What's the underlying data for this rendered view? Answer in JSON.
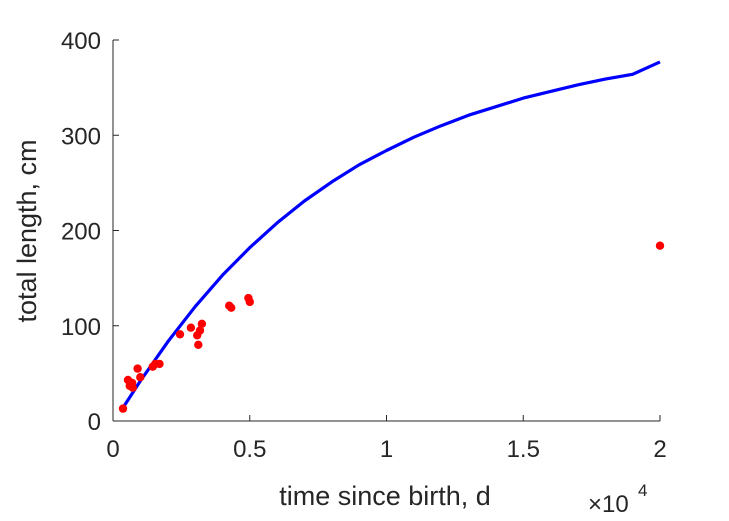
{
  "chart_data": {
    "type": "scatter",
    "title": "",
    "xlabel": "time since birth, d",
    "ylabel": "total length, cm",
    "x_exponent_label": "×10",
    "x_exponent_power": "4",
    "x_scale_factor": 10000,
    "xlim": [
      0,
      20000
    ],
    "ylim": [
      0,
      400
    ],
    "x_ticks": [
      0,
      5000,
      10000,
      15000,
      20000
    ],
    "x_tick_labels": [
      "0",
      "0.5",
      "1",
      "1.5",
      "2"
    ],
    "y_ticks": [
      0,
      100,
      200,
      300,
      400
    ],
    "y_tick_labels": [
      "0",
      "100",
      "200",
      "300",
      "400"
    ],
    "grid": false,
    "series": [
      {
        "kind": "scatter",
        "color": "#ff0000",
        "points": [
          [
            365,
            13
          ],
          [
            550,
            43
          ],
          [
            610,
            37
          ],
          [
            640,
            39
          ],
          [
            700,
            40
          ],
          [
            720,
            35
          ],
          [
            900,
            55
          ],
          [
            1000,
            46
          ],
          [
            1450,
            57
          ],
          [
            1550,
            60
          ],
          [
            1700,
            60
          ],
          [
            2450,
            91
          ],
          [
            2850,
            98
          ],
          [
            3080,
            90
          ],
          [
            3120,
            80
          ],
          [
            3180,
            95
          ],
          [
            3250,
            102
          ],
          [
            4250,
            121
          ],
          [
            4320,
            119
          ],
          [
            4950,
            129
          ],
          [
            5000,
            125
          ],
          [
            20000,
            184
          ]
        ]
      },
      {
        "kind": "line",
        "color": "#0000ff",
        "points": [
          [
            365,
            14
          ],
          [
            1000,
            42
          ],
          [
            2000,
            83
          ],
          [
            3000,
            120
          ],
          [
            4000,
            153
          ],
          [
            5000,
            182
          ],
          [
            6000,
            208
          ],
          [
            7000,
            231
          ],
          [
            8000,
            251
          ],
          [
            9000,
            269
          ],
          [
            10000,
            284
          ],
          [
            11000,
            298
          ],
          [
            12000,
            310
          ],
          [
            13000,
            321
          ],
          [
            14000,
            330
          ],
          [
            15000,
            339
          ],
          [
            16000,
            346
          ],
          [
            17000,
            353
          ],
          [
            18000,
            359
          ],
          [
            19000,
            364
          ],
          [
            20000,
            377
          ]
        ]
      }
    ]
  }
}
